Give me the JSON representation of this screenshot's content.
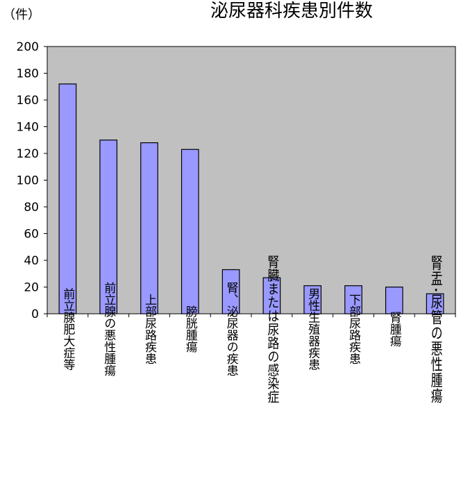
{
  "chart_data": {
    "type": "bar",
    "title": "泌尿器科疾患別件数",
    "ylabel": "（件）",
    "xlabel": "",
    "ylim": [
      0,
      200
    ],
    "yticks": [
      0,
      20,
      40,
      60,
      80,
      100,
      120,
      140,
      160,
      180,
      200
    ],
    "categories": [
      "前立腺肥大症等",
      "前立腺の悪性腫瘍",
      "上部尿路疾患",
      "膀胱腫瘍",
      "腎、泌尿器の疾患",
      "腎臓または尿路の感染症",
      "男性生殖器疾患",
      "下部尿路疾患",
      "腎腫瘍",
      "腎盂･尿管の悪性腫瘍"
    ],
    "values": [
      172,
      130,
      128,
      123,
      33,
      27,
      21,
      21,
      20,
      15
    ],
    "grid": false,
    "legend": "none",
    "colors": {
      "bar": "#9999ff",
      "bar_stroke": "#000000",
      "plot_bg": "#c0c0c0",
      "axis": "#000000"
    }
  }
}
